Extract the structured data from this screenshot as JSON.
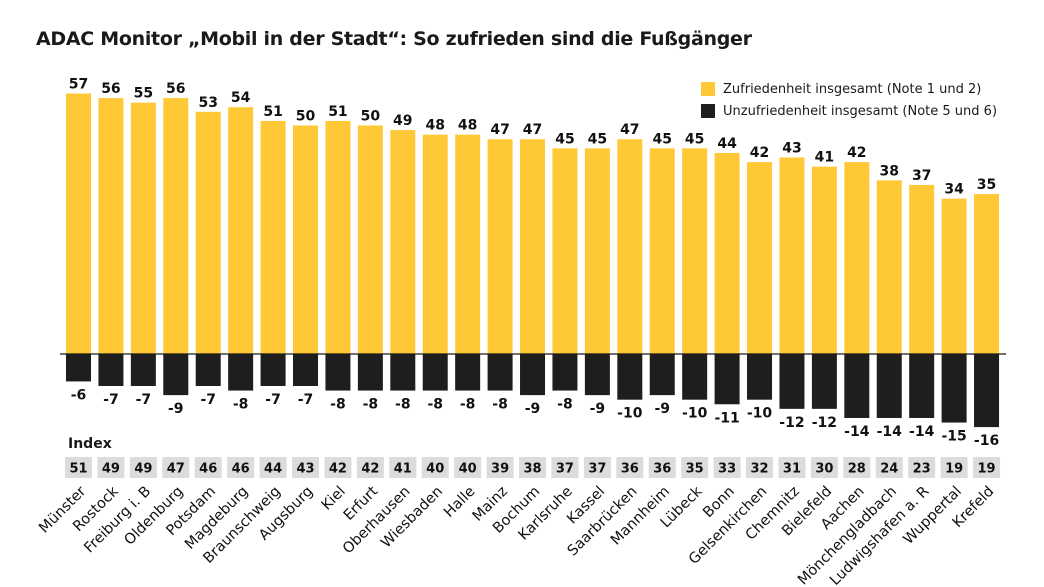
{
  "chart_data": {
    "type": "bar",
    "title": "ADAC Monitor „Mobil in der Stadt“: So zufrieden sind die Fußgänger",
    "categories": [
      "Münster",
      "Rostock",
      "Freiburg i. B",
      "Oldenburg",
      "Potsdam",
      "Magdeburg",
      "Braunschweig",
      "Augsburg",
      "Kiel",
      "Erfurt",
      "Oberhausen",
      "Wiesbaden",
      "Halle",
      "Mainz",
      "Bochum",
      "Karlsruhe",
      "Kassel",
      "Saarbrücken",
      "Mannheim",
      "Lübeck",
      "Bonn",
      "Gelsenkirchen",
      "Chemnitz",
      "Bielefeld",
      "Aachen",
      "Mönchengladbach",
      "Ludwigshafen a. R",
      "Wuppertal",
      "Krefeld"
    ],
    "series": [
      {
        "name": "Zufriedenheit insgesamt (Note 1 und 2)",
        "color": "#ffc836",
        "values": [
          57,
          56,
          55,
          56,
          53,
          54,
          51,
          50,
          51,
          50,
          49,
          48,
          48,
          47,
          47,
          45,
          45,
          47,
          45,
          45,
          44,
          42,
          43,
          41,
          42,
          38,
          37,
          34,
          35
        ]
      },
      {
        "name": "Unzufriedenheit insgesamt (Note 5 und 6)",
        "color": "#1e1e1e",
        "values": [
          -6,
          -7,
          -7,
          -9,
          -7,
          -8,
          -7,
          -7,
          -8,
          -8,
          -8,
          -8,
          -8,
          -8,
          -9,
          -8,
          -9,
          -10,
          -9,
          -10,
          -11,
          -10,
          -12,
          -12,
          -14,
          -14,
          -14,
          -15,
          -16
        ]
      }
    ],
    "index_label": "Index",
    "index_values": [
      51,
      49,
      49,
      47,
      46,
      46,
      44,
      43,
      42,
      42,
      41,
      40,
      40,
      39,
      38,
      37,
      37,
      36,
      36,
      35,
      33,
      32,
      31,
      30,
      28,
      24,
      23,
      19,
      19
    ],
    "ylim": [
      -17,
      60
    ],
    "grid": false,
    "legend_position": "top-right"
  }
}
